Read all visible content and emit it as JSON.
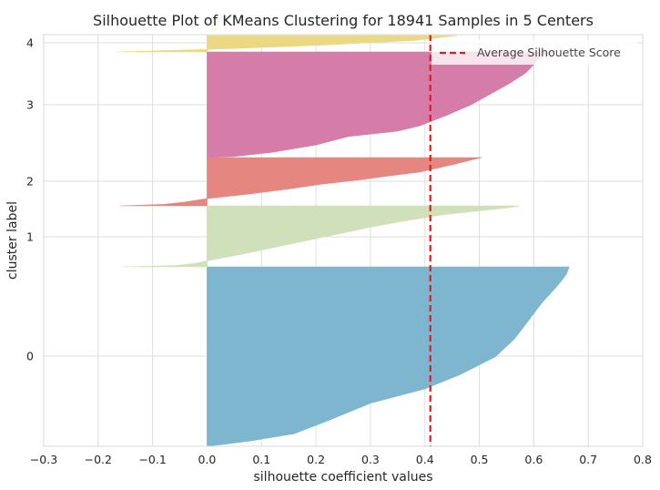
{
  "chart_data": {
    "type": "area",
    "title": "Silhouette Plot of KMeans Clustering for 18941 Samples in 5 Centers",
    "xlabel": "silhouette coefficient values",
    "ylabel": "cluster label",
    "xlim": [
      -0.3,
      0.8
    ],
    "x_ticks": [
      -0.3,
      -0.2,
      -0.1,
      0.0,
      0.1,
      0.2,
      0.3,
      0.4,
      0.5,
      0.6,
      0.7,
      0.8
    ],
    "x_tick_labels": [
      "−0.3",
      "−0.2",
      "−0.1",
      "0.0",
      "0.1",
      "0.2",
      "0.3",
      "0.4",
      "0.5",
      "0.6",
      "0.7",
      "0.8"
    ],
    "y_tick_labels": [
      "0",
      "1",
      "2",
      "3",
      "4"
    ],
    "average_silhouette_score": 0.41,
    "legend": {
      "label": "Average Silhouette Score",
      "position": "top-right",
      "color": "#e41a1c"
    },
    "clusters": [
      {
        "label": "0",
        "color": "#7eb6cf",
        "min": 0.0,
        "max": 0.665,
        "profile": [
          [
            0.0,
            0.665
          ],
          [
            0.04,
            0.66
          ],
          [
            0.1,
            0.645
          ],
          [
            0.2,
            0.615
          ],
          [
            0.3,
            0.59
          ],
          [
            0.4,
            0.565
          ],
          [
            0.5,
            0.53
          ],
          [
            0.6,
            0.465
          ],
          [
            0.68,
            0.4
          ],
          [
            0.76,
            0.3
          ],
          [
            0.86,
            0.22
          ],
          [
            0.93,
            0.16
          ],
          [
            0.97,
            0.08
          ],
          [
            0.99,
            0.03
          ],
          [
            1.0,
            0.0
          ]
        ]
      },
      {
        "label": "1",
        "color": "#cfe0bb",
        "min": -0.155,
        "max": 0.575,
        "profile": [
          [
            0.0,
            0.575
          ],
          [
            0.03,
            0.555
          ],
          [
            0.08,
            0.5
          ],
          [
            0.15,
            0.43
          ],
          [
            0.25,
            0.36
          ],
          [
            0.35,
            0.3
          ],
          [
            0.5,
            0.22
          ],
          [
            0.65,
            0.14
          ],
          [
            0.8,
            0.06
          ],
          [
            0.9,
            0.0
          ],
          [
            0.94,
            -0.02
          ],
          [
            0.98,
            -0.06
          ],
          [
            1.0,
            -0.155
          ]
        ]
      },
      {
        "label": "2",
        "color": "#e58780",
        "min": -0.16,
        "max": 0.505,
        "profile": [
          [
            0.0,
            0.505
          ],
          [
            0.05,
            0.485
          ],
          [
            0.15,
            0.45
          ],
          [
            0.3,
            0.39
          ],
          [
            0.4,
            0.32
          ],
          [
            0.45,
            0.29
          ],
          [
            0.55,
            0.21
          ],
          [
            0.65,
            0.15
          ],
          [
            0.75,
            0.08
          ],
          [
            0.85,
            0.0
          ],
          [
            0.92,
            -0.04
          ],
          [
            0.97,
            -0.08
          ],
          [
            1.0,
            -0.16
          ]
        ]
      },
      {
        "label": "3",
        "color": "#d57ca8",
        "min": 0.0,
        "max": 0.64,
        "profile": [
          [
            0.0,
            0.64
          ],
          [
            0.05,
            0.61
          ],
          [
            0.12,
            0.6
          ],
          [
            0.2,
            0.585
          ],
          [
            0.3,
            0.555
          ],
          [
            0.4,
            0.52
          ],
          [
            0.5,
            0.485
          ],
          [
            0.6,
            0.44
          ],
          [
            0.7,
            0.39
          ],
          [
            0.75,
            0.35
          ],
          [
            0.8,
            0.26
          ],
          [
            0.88,
            0.2
          ],
          [
            0.95,
            0.12
          ],
          [
            0.99,
            0.05
          ],
          [
            1.0,
            0.0
          ]
        ]
      },
      {
        "label": "4",
        "color": "#ead982",
        "min": -0.165,
        "max": 0.46,
        "profile": [
          [
            0.0,
            0.46
          ],
          [
            0.3,
            0.38
          ],
          [
            0.6,
            0.2
          ],
          [
            0.85,
            0.0
          ],
          [
            1.0,
            -0.165
          ]
        ]
      }
    ]
  }
}
